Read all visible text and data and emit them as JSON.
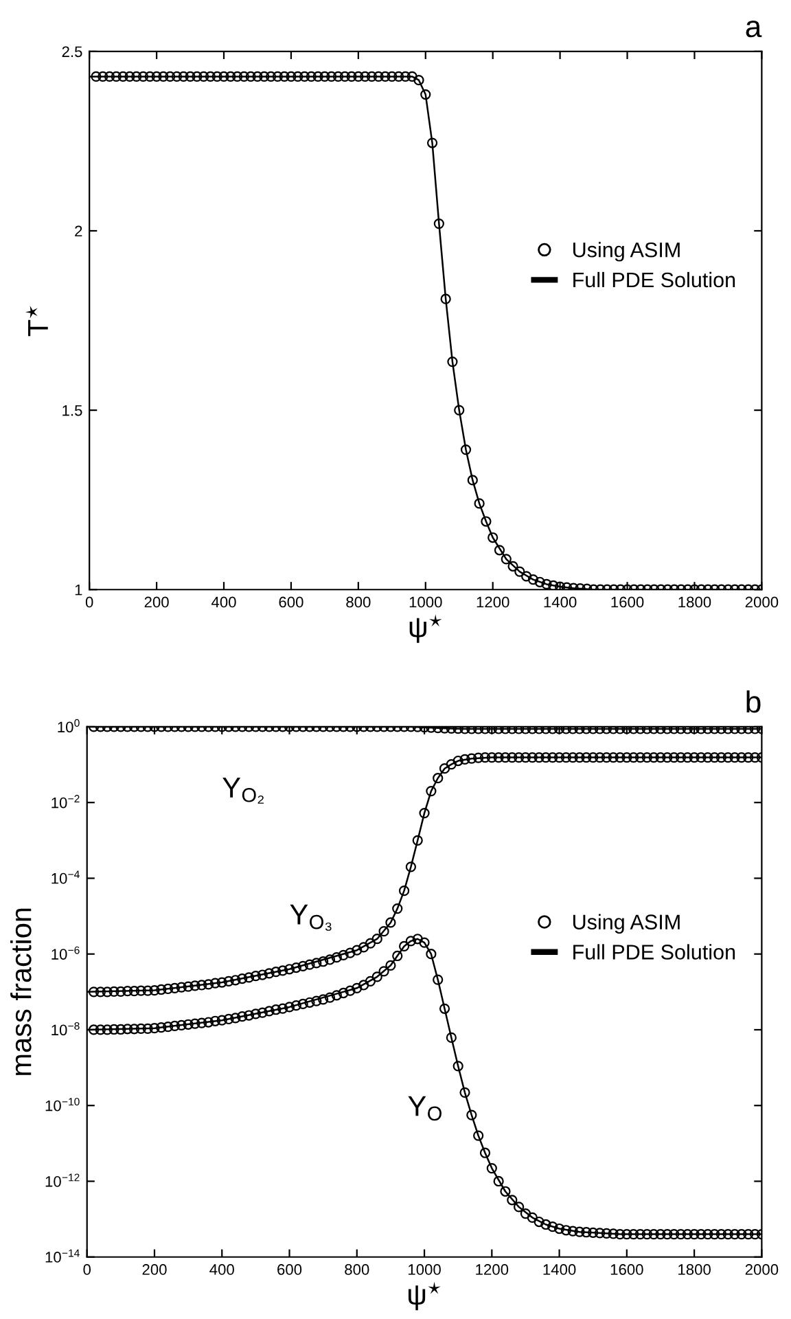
{
  "chart_data": [
    {
      "type": "line",
      "xlabel": "ψ$^{⋆}$",
      "ylabel": "T$^{⋆}$",
      "annotations": [
        "a"
      ],
      "xlim": [
        0,
        2000
      ],
      "xticks": [
        0,
        200,
        400,
        600,
        800,
        1000,
        1200,
        1400,
        1600,
        1800,
        2000
      ],
      "ylim": [
        1,
        2.5
      ],
      "yticks": [
        1,
        1.5,
        2,
        2.5
      ],
      "grid": false,
      "legend": "right",
      "series": [
        {
          "name": "Using ASIM",
          "type": "scatter",
          "marker": "circle",
          "color": "#000000",
          "x": [
            20,
            40,
            60,
            80,
            100,
            120,
            140,
            160,
            180,
            200,
            220,
            240,
            260,
            280,
            300,
            320,
            340,
            360,
            380,
            400,
            420,
            440,
            460,
            480,
            500,
            520,
            540,
            560,
            580,
            600,
            620,
            640,
            660,
            680,
            700,
            720,
            740,
            760,
            780,
            800,
            820,
            840,
            860,
            880,
            900,
            920,
            940,
            960,
            980,
            1000,
            1020,
            1040,
            1060,
            1080,
            1100,
            1120,
            1140,
            1160,
            1180,
            1200,
            1220,
            1240,
            1260,
            1280,
            1300,
            1320,
            1340,
            1360,
            1380,
            1400,
            1420,
            1440,
            1460,
            1480,
            1500,
            1520,
            1540,
            1560,
            1580,
            1600,
            1620,
            1640,
            1660,
            1680,
            1700,
            1720,
            1740,
            1760,
            1780,
            1800,
            1820,
            1840,
            1860,
            1880,
            1900,
            1920,
            1940,
            1960,
            1980,
            2000
          ],
          "values": [
            2.43,
            2.43,
            2.43,
            2.43,
            2.43,
            2.43,
            2.43,
            2.43,
            2.43,
            2.43,
            2.43,
            2.43,
            2.43,
            2.43,
            2.43,
            2.43,
            2.43,
            2.43,
            2.43,
            2.43,
            2.43,
            2.43,
            2.43,
            2.43,
            2.43,
            2.43,
            2.43,
            2.43,
            2.43,
            2.43,
            2.43,
            2.43,
            2.43,
            2.43,
            2.43,
            2.43,
            2.43,
            2.43,
            2.43,
            2.43,
            2.43,
            2.43,
            2.43,
            2.43,
            2.43,
            2.43,
            2.43,
            2.43,
            2.42,
            2.38,
            2.245,
            2.02,
            1.81,
            1.635,
            1.5,
            1.39,
            1.305,
            1.24,
            1.19,
            1.145,
            1.11,
            1.085,
            1.065,
            1.05,
            1.037,
            1.028,
            1.021,
            1.015,
            1.011,
            1.008,
            1.006,
            1.004,
            1.003,
            1.002,
            1.0,
            1.0,
            1.0,
            1.0,
            1.0,
            1.0,
            1.0,
            1.0,
            1.0,
            1.0,
            1.0,
            1.0,
            1.0,
            1.0,
            1.0,
            1.0,
            1.0,
            1.0,
            1.0,
            1.0,
            1.0,
            1.0,
            1.0,
            1.0,
            1.0,
            1.0
          ]
        },
        {
          "name": "Full PDE Solution",
          "type": "line",
          "line_style": "solid",
          "color": "#000000",
          "x": [
            0,
            940,
            960,
            980,
            1000,
            1020,
            1040,
            1060,
            1080,
            1100,
            1120,
            1140,
            1160,
            1180,
            1200,
            1240,
            1280,
            1320,
            1360,
            1400,
            1440,
            1500,
            2000
          ],
          "values": [
            2.43,
            2.43,
            2.43,
            2.42,
            2.38,
            2.245,
            2.02,
            1.81,
            1.635,
            1.5,
            1.39,
            1.305,
            1.24,
            1.19,
            1.145,
            1.085,
            1.05,
            1.028,
            1.015,
            1.008,
            1.004,
            1.0,
            1.0
          ]
        }
      ]
    },
    {
      "type": "line",
      "xlabel": "ψ$^{⋆}$",
      "ylabel": "mass fraction",
      "log": "y",
      "annotations": [
        "b",
        "Y$_{O₂}$",
        "Y$_{O₃}$",
        "Y$_{O}$"
      ],
      "xlim": [
        0,
        2000
      ],
      "xticks": [
        0,
        200,
        400,
        600,
        800,
        1000,
        1200,
        1400,
        1600,
        1800,
        2000
      ],
      "ylim": [
        1e-14,
        1
      ],
      "yticks": [
        {
          "value": 1e-14,
          "label": "10$^{−14}$"
        },
        {
          "value": 1e-12,
          "label": "10$^{−12}$"
        },
        {
          "value": 1e-10,
          "label": "10$^{−10}$"
        },
        {
          "value": 1e-08,
          "label": "10$^{−8}$"
        },
        {
          "value": 1e-06,
          "label": "10$^{−6}$"
        },
        {
          "value": 0.0001,
          "label": "10$^{−4}$"
        },
        {
          "value": 0.01,
          "label": "10$^{−2}$"
        },
        {
          "value": 1,
          "label": "10$^{0}$"
        }
      ],
      "grid": false,
      "legend": "right",
      "series": [
        {
          "name": "Using ASIM",
          "type": "scatter",
          "marker": "circle",
          "color": "#000000",
          "x": [
            20,
            40,
            60,
            80,
            100,
            120,
            140,
            160,
            180,
            200,
            220,
            240,
            260,
            280,
            300,
            320,
            340,
            360,
            380,
            400,
            420,
            440,
            460,
            480,
            500,
            520,
            540,
            560,
            580,
            600,
            620,
            640,
            660,
            680,
            700,
            720,
            740,
            760,
            780,
            800,
            820,
            840,
            860,
            880,
            900,
            920,
            940,
            960,
            980,
            1000,
            1020,
            1040,
            1060,
            1080,
            1100,
            1120,
            1140,
            1160,
            1180,
            1200,
            1220,
            1240,
            1260,
            1280,
            1300,
            1320,
            1340,
            1360,
            1380,
            1400,
            1420,
            1440,
            1460,
            1480,
            1500,
            1520,
            1540,
            1560,
            1580,
            1600,
            1620,
            1640,
            1660,
            1680,
            1700,
            1720,
            1740,
            1760,
            1780,
            1800,
            1820,
            1840,
            1860,
            1880,
            1900,
            1920,
            1940,
            1960,
            1980,
            2000
          ],
          "values": [
            1.0,
            1.0,
            1.0,
            1.0,
            1.0,
            1.0,
            1.0,
            1.0,
            1.0,
            1.0,
            1.0,
            1.0,
            1.0,
            1.0,
            1.0,
            1.0,
            1.0,
            1.0,
            1.0,
            1.0,
            1.0,
            1.0,
            1.0,
            1.0,
            1.0,
            1.0,
            1.0,
            1.0,
            1.0,
            1.0,
            1.0,
            1.0,
            1.0,
            1.0,
            1.0,
            1.0,
            1.0,
            1.0,
            1.0,
            1.0,
            1.0,
            1.0,
            1.0,
            1.0,
            1.0,
            1.0,
            1.0,
            1.0,
            0.99,
            0.97,
            0.95,
            0.93,
            0.91,
            0.9,
            0.89,
            0.88,
            0.88,
            0.88,
            0.88,
            0.88,
            0.88,
            0.88,
            0.88,
            0.88,
            0.88,
            0.88,
            0.88,
            0.88,
            0.88,
            0.88,
            0.88,
            0.88,
            0.88,
            0.88,
            0.88,
            0.88,
            0.88,
            0.88,
            0.88,
            0.88,
            0.88,
            0.88,
            0.88,
            0.88,
            0.88,
            0.88,
            0.88,
            0.88,
            0.88,
            0.88,
            0.88,
            0.88,
            0.88,
            0.88,
            0.88,
            0.88,
            0.88,
            0.88,
            0.88,
            0.88
          ]
        },
        {
          "type": "scatter",
          "marker": "circle",
          "color": "#000000",
          "x": [
            20,
            40,
            60,
            80,
            100,
            120,
            140,
            160,
            180,
            200,
            220,
            240,
            260,
            280,
            300,
            320,
            340,
            360,
            380,
            400,
            420,
            440,
            460,
            480,
            500,
            520,
            540,
            560,
            580,
            600,
            620,
            640,
            660,
            680,
            700,
            720,
            740,
            760,
            780,
            800,
            820,
            840,
            860,
            880,
            900,
            920,
            940,
            960,
            980,
            1000,
            1020,
            1040,
            1060,
            1080,
            1100,
            1120,
            1140,
            1160,
            1180,
            1200,
            1220,
            1240,
            1260,
            1280,
            1300,
            1320,
            1340,
            1360,
            1380,
            1400,
            1420,
            1440,
            1460,
            1480,
            1500,
            1520,
            1540,
            1560,
            1580,
            1600,
            1620,
            1640,
            1660,
            1680,
            1700,
            1720,
            1740,
            1760,
            1780,
            1800,
            1820,
            1840,
            1860,
            1880,
            1900,
            1920,
            1940,
            1960,
            1980,
            2000
          ],
          "values": [
            1e-07,
            1e-07,
            1e-07,
            1.02e-07,
            1.02e-07,
            1.05e-07,
            1.05e-07,
            1.07e-07,
            1.07e-07,
            1.1e-07,
            1.15e-07,
            1.2e-07,
            1.26e-07,
            1.32e-07,
            1.38e-07,
            1.45e-07,
            1.51e-07,
            1.58e-07,
            1.7e-07,
            1.78e-07,
            1.91e-07,
            2.04e-07,
            2.24e-07,
            2.4e-07,
            2.63e-07,
            2.82e-07,
            3.09e-07,
            3.39e-07,
            3.63e-07,
            3.98e-07,
            4.37e-07,
            4.79e-07,
            5.25e-07,
            5.75e-07,
            6.31e-07,
            7.08e-07,
            8.13e-07,
            9.33e-07,
            1.07e-06,
            1.26e-06,
            1.51e-06,
            1.91e-06,
            2.51e-06,
            3.98e-06,
            6.76e-06,
            1.58e-05,
            4.68e-05,
            0.0002,
            0.001,
            0.00525,
            0.02,
            0.044,
            0.079,
            0.102,
            0.126,
            0.138,
            0.145,
            0.151,
            0.155,
            0.155,
            0.155,
            0.155,
            0.155,
            0.155,
            0.155,
            0.155,
            0.155,
            0.155,
            0.155,
            0.155,
            0.155,
            0.155,
            0.155,
            0.155,
            0.155,
            0.155,
            0.155,
            0.155,
            0.155,
            0.155,
            0.155,
            0.155,
            0.155,
            0.155,
            0.155,
            0.155,
            0.155,
            0.155,
            0.155,
            0.155,
            0.155,
            0.155,
            0.155,
            0.155,
            0.155,
            0.155,
            0.155,
            0.155,
            0.155,
            0.155
          ]
        },
        {
          "type": "scatter",
          "marker": "circle",
          "color": "#000000",
          "x": [
            20,
            40,
            60,
            80,
            100,
            120,
            140,
            160,
            180,
            200,
            220,
            240,
            260,
            280,
            300,
            320,
            340,
            360,
            380,
            400,
            420,
            440,
            460,
            480,
            500,
            520,
            540,
            560,
            580,
            600,
            620,
            640,
            660,
            680,
            700,
            720,
            740,
            760,
            780,
            800,
            820,
            840,
            860,
            880,
            900,
            920,
            940,
            960,
            980,
            1000,
            1020,
            1040,
            1060,
            1080,
            1100,
            1120,
            1140,
            1160,
            1180,
            1200,
            1220,
            1240,
            1260,
            1280,
            1300,
            1320,
            1340,
            1360,
            1380,
            1400,
            1420,
            1440,
            1460,
            1480,
            1500,
            1520,
            1540,
            1560,
            1580,
            1600,
            1620,
            1640,
            1660,
            1680,
            1700,
            1720,
            1740,
            1760,
            1780,
            1800,
            1820,
            1840,
            1860,
            1880,
            1900,
            1920,
            1940,
            1960,
            1980,
            2000
          ],
          "values": [
            1e-08,
            1e-08,
            1e-08,
            1.02e-08,
            1.02e-08,
            1.05e-08,
            1.05e-08,
            1.07e-08,
            1.07e-08,
            1.1e-08,
            1.15e-08,
            1.2e-08,
            1.26e-08,
            1.32e-08,
            1.38e-08,
            1.45e-08,
            1.51e-08,
            1.58e-08,
            1.7e-08,
            1.78e-08,
            1.91e-08,
            2.04e-08,
            2.24e-08,
            2.4e-08,
            2.63e-08,
            2.82e-08,
            3.09e-08,
            3.39e-08,
            3.63e-08,
            3.98e-08,
            4.37e-08,
            4.79e-08,
            5.25e-08,
            5.75e-08,
            6.31e-08,
            7.08e-08,
            8.13e-08,
            9.33e-08,
            1.07e-07,
            1.26e-07,
            1.51e-07,
            1.91e-07,
            2.51e-07,
            3.5e-07,
            5e-07,
            8.9e-07,
            1.6e-06,
            2.2e-06,
            2.5e-06,
            2e-06,
            1e-06,
            2.1e-07,
            3.6e-08,
            6.2e-09,
            1.1e-09,
            2.2e-10,
            5.6e-11,
            1.6e-11,
            5.6e-12,
            2.2e-12,
            1e-12,
            5.4e-13,
            3.2e-13,
            2.1e-13,
            1.4e-13,
            1.1e-13,
            8.5e-14,
            7.2e-14,
            6.3e-14,
            5.6e-14,
            5.1e-14,
            4.8e-14,
            4.6e-14,
            4.5e-14,
            4.4e-14,
            4.3e-14,
            4.2e-14,
            4.1e-14,
            4e-14,
            4e-14,
            4e-14,
            4e-14,
            4e-14,
            4e-14,
            4e-14,
            4e-14,
            4e-14,
            4e-14,
            4e-14,
            4e-14,
            4e-14,
            4e-14,
            4e-14,
            4e-14,
            4e-14,
            4e-14,
            4e-14,
            4e-14,
            4e-14,
            4e-14
          ]
        },
        {
          "name": "Full PDE Solution",
          "type": "line",
          "line_style": "solid",
          "color": "#000000",
          "x": [
            0,
            960,
            1000,
            1040,
            1080,
            1120,
            2000
          ],
          "values": [
            1.0,
            1.0,
            0.97,
            0.93,
            0.9,
            0.88,
            0.88
          ]
        },
        {
          "type": "line",
          "line_style": "solid",
          "color": "#000000",
          "x": [
            0,
            200,
            400,
            600,
            800,
            860,
            900,
            920,
            940,
            960,
            980,
            1000,
            1020,
            1040,
            1060,
            1080,
            1100,
            1140,
            1200,
            2000
          ],
          "values": [
            1e-07,
            1.1e-07,
            1.78e-07,
            3.98e-07,
            1.26e-06,
            2.51e-06,
            6.76e-06,
            1.58e-05,
            4.68e-05,
            0.0002,
            0.001,
            0.00525,
            0.02,
            0.044,
            0.079,
            0.102,
            0.126,
            0.145,
            0.155,
            0.155
          ]
        },
        {
          "type": "line",
          "line_style": "solid",
          "color": "#000000",
          "x": [
            0,
            200,
            400,
            600,
            800,
            860,
            900,
            940,
            960,
            980,
            1000,
            1020,
            1040,
            1060,
            1080,
            1100,
            1120,
            1140,
            1160,
            1180,
            1200,
            1240,
            1280,
            1320,
            1360,
            1400,
            1460,
            1500,
            1580,
            2000
          ],
          "values": [
            1e-08,
            1.1e-08,
            1.78e-08,
            3.98e-08,
            1.26e-07,
            2.51e-07,
            5e-07,
            1.6e-06,
            2.2e-06,
            2.5e-06,
            2e-06,
            1e-06,
            2.1e-07,
            3.6e-08,
            6.2e-09,
            1.1e-09,
            2.2e-10,
            5.6e-11,
            1.6e-11,
            5.6e-12,
            2.2e-12,
            5.4e-13,
            2.1e-13,
            1.1e-13,
            7.2e-14,
            5.6e-14,
            4.6e-14,
            4.4e-14,
            4e-14,
            4e-14
          ]
        }
      ]
    }
  ]
}
